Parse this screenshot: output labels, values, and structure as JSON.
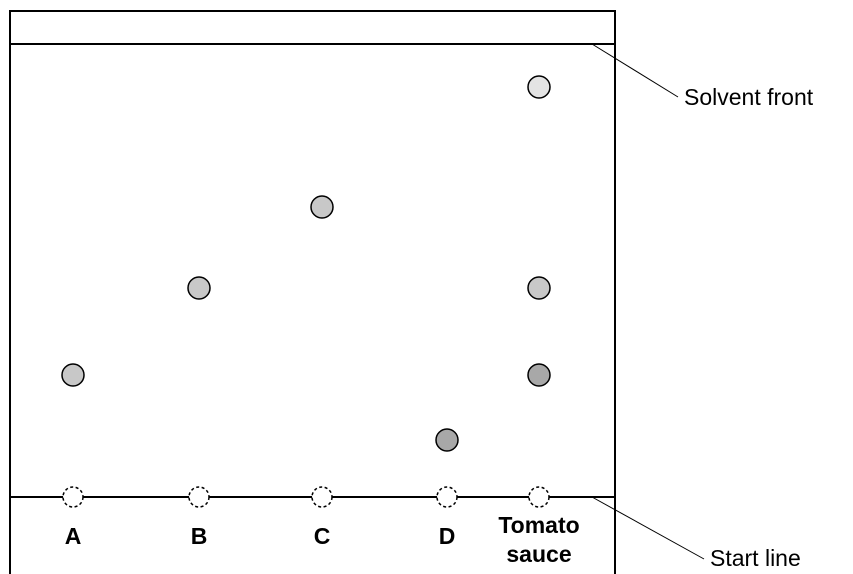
{
  "labels": {
    "solvent_front": "Solvent front",
    "start_line": "Start line"
  },
  "lanes": [
    {
      "id": "a",
      "label_lines": [
        "A"
      ]
    },
    {
      "id": "b",
      "label_lines": [
        "B"
      ]
    },
    {
      "id": "c",
      "label_lines": [
        "C"
      ]
    },
    {
      "id": "d",
      "label_lines": [
        "D"
      ]
    },
    {
      "id": "tomato-sauce",
      "label_lines": [
        "Tomato",
        "sauce"
      ]
    }
  ],
  "spots": [
    {
      "lane": "a",
      "shade": "#c8c8c8"
    },
    {
      "lane": "b",
      "shade": "#c8c8c8"
    },
    {
      "lane": "c",
      "shade": "#c8c8c8"
    },
    {
      "lane": "d",
      "shade": "#a8a8a8"
    },
    {
      "lane": "tomato-sauce",
      "shade": "#e4e4e4"
    },
    {
      "lane": "tomato-sauce",
      "shade": "#c8c8c8"
    },
    {
      "lane": "tomato-sauce",
      "shade": "#a8a8a8"
    }
  ]
}
